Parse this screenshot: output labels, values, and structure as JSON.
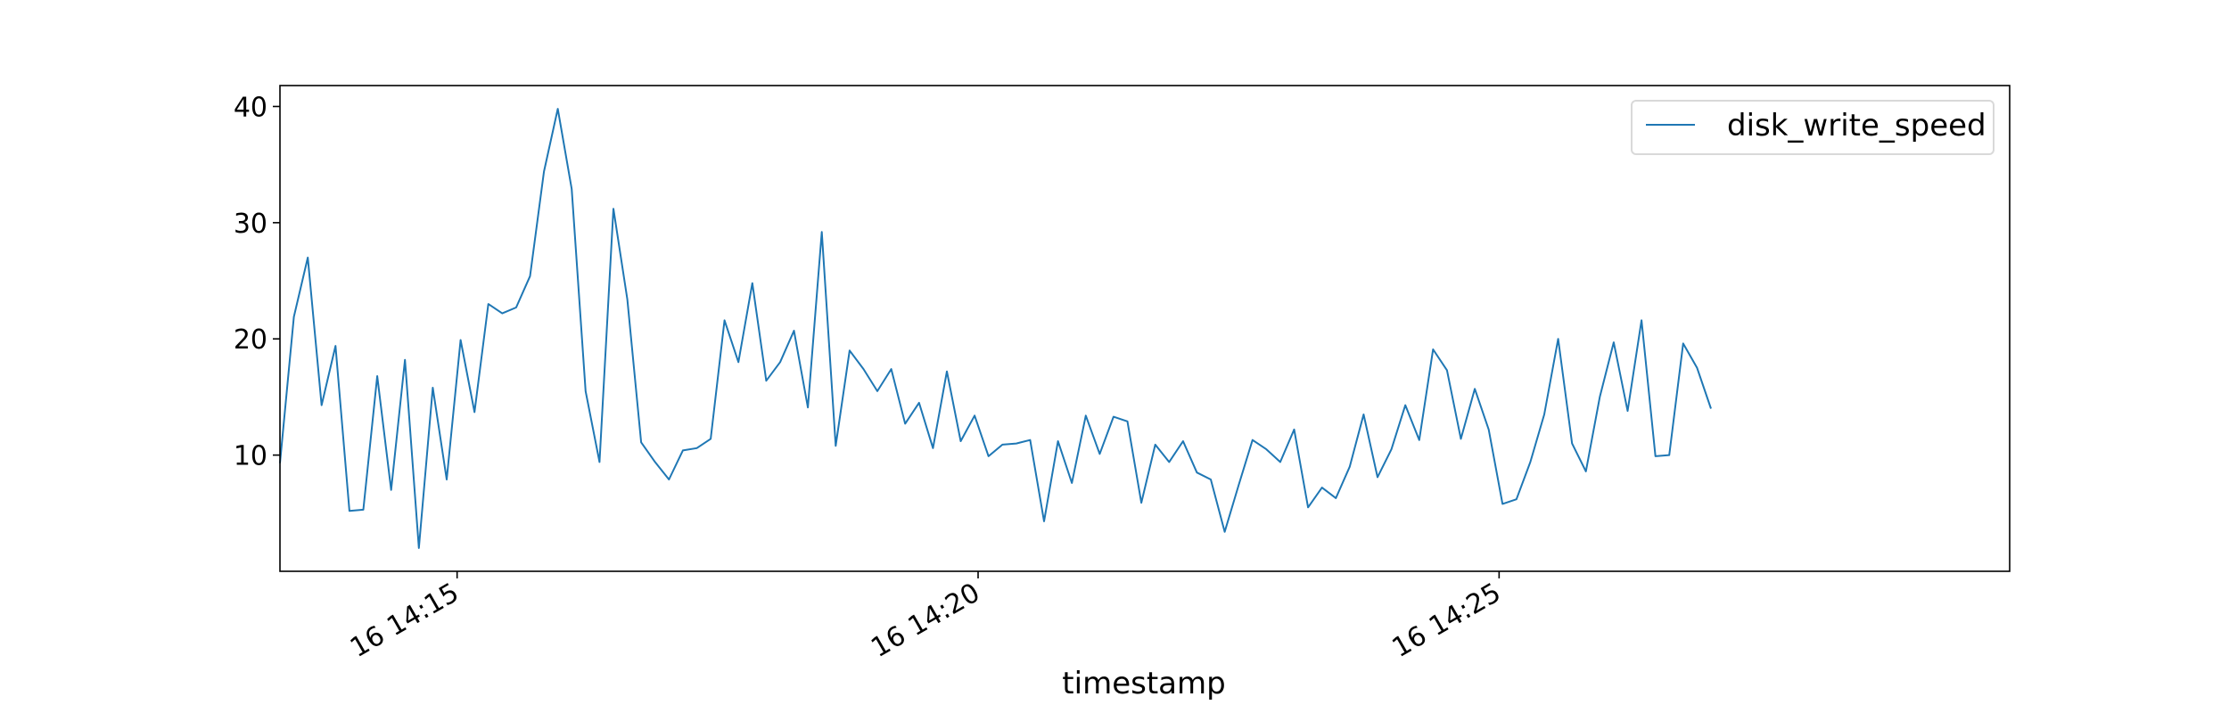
{
  "chart_data": {
    "type": "line",
    "xlabel": "timestamp",
    "ylabel": "",
    "title": "",
    "x_start": "14:13:18",
    "x_step_seconds": 8,
    "xlim": [
      "14:13:18",
      "14:29:54"
    ],
    "x_ticks": [
      {
        "time": "14:15:00",
        "label": "16 14:15"
      },
      {
        "time": "14:20:00",
        "label": "16 14:20"
      },
      {
        "time": "14:25:00",
        "label": "16 14:25"
      }
    ],
    "ylim": [
      0,
      41.8
    ],
    "y_ticks": [
      10,
      20,
      30,
      40
    ],
    "grid": false,
    "legend": {
      "position": "top-right"
    },
    "color": "#1f77b4",
    "series": [
      {
        "name": "disk_write_speed",
        "values": [
          9.3,
          21.9,
          27.0,
          14.3,
          19.4,
          5.2,
          5.3,
          16.8,
          7.0,
          18.2,
          2.0,
          15.8,
          7.9,
          19.9,
          13.7,
          23.0,
          22.2,
          22.7,
          25.4,
          34.4,
          39.8,
          32.9,
          15.5,
          9.4,
          31.2,
          23.4,
          11.1,
          9.4,
          7.9,
          10.4,
          10.6,
          11.4,
          21.6,
          18.0,
          24.8,
          16.4,
          18.0,
          20.7,
          14.1,
          29.2,
          10.8,
          19.0,
          17.4,
          15.5,
          17.4,
          12.7,
          14.5,
          10.6,
          17.2,
          11.2,
          13.4,
          9.9,
          10.9,
          11.0,
          11.3,
          4.3,
          11.2,
          7.6,
          13.4,
          10.1,
          13.3,
          12.9,
          5.9,
          10.9,
          9.4,
          11.2,
          8.5,
          7.9,
          3.4,
          7.4,
          11.3,
          10.5,
          9.4,
          12.2,
          5.5,
          7.2,
          6.3,
          9.0,
          13.5,
          8.1,
          10.5,
          14.3,
          11.3,
          19.1,
          17.3,
          11.4,
          15.7,
          12.2,
          5.8,
          6.2,
          9.4,
          13.5,
          20.0,
          11.0,
          8.6,
          15.0,
          19.7,
          13.8,
          21.6,
          9.9,
          10.0,
          19.6,
          17.5,
          14.0
        ]
      }
    ]
  }
}
